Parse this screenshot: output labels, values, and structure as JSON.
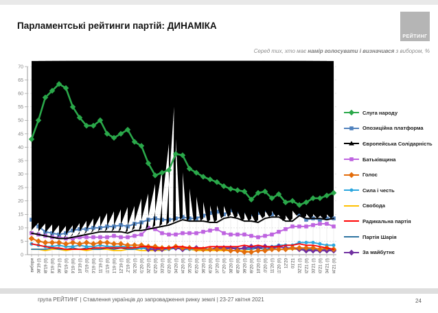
{
  "page": {
    "title": "Парламентські рейтинги партій: ДИНАМІКА",
    "logo_text": "РЕЙТИНГ",
    "subtitle": {
      "part1": "Серед тих, хто має ",
      "part2_bold": "намір голосувати і визначився",
      "part3": " з вибором, %"
    },
    "footer": {
      "text": "група РЕЙТИНГ  | Ставлення українців до запровадження ринку землі  | 23-27 квітня 2021",
      "page_number": "24"
    }
  },
  "chart_data": {
    "type": "line",
    "title": "",
    "xlabel": "",
    "ylabel": "",
    "ylim": [
      0,
      70
    ],
    "ytick_step": 5,
    "grid": true,
    "legend_position": "right",
    "categories": [
      "вибори",
      "08'19 (I)",
      "08'19 (II)",
      "08'19 (III)",
      "09'19 (I)",
      "09'19 (II)",
      "09'19 (III)",
      "10'19 (I)",
      "10'19 (II)",
      "10'19 (III)",
      "11'19 (I)",
      "11'19 (II)",
      "11'19 (III)",
      "12'19 (I)",
      "12'19 (II)",
      "01'20 (I)",
      "01'20 (II)",
      "02'20 (I)",
      "02'20 (II)",
      "03'20 (I)",
      "03'20 (II)",
      "04'20 (I)",
      "04'20 (II)",
      "05'20 (I)",
      "05'20 (II)",
      "06'20 (I)",
      "06'20 (II)",
      "07'20 (I)",
      "07'20 (II)",
      "08'20 (I)",
      "08'20 (II)",
      "09'20 (I)",
      "09'20 (II)",
      "10'20 (I)",
      "10'20 (II)",
      "11'20 (I)",
      "11'20 (II)",
      "12'20",
      "01'21",
      "02'21 (I)",
      "02'21 (II)",
      "03'21 (I)",
      "03'21 (II)",
      "04'21 (I)",
      "04'21 (II)"
    ],
    "series": [
      {
        "name": "Слуга народу",
        "color": "#2AA84A",
        "marker": "diamond",
        "width": 2.6,
        "values": [
          43,
          50,
          58.5,
          61,
          63.5,
          62,
          55,
          51,
          48,
          48,
          50,
          45,
          43.5,
          45,
          46.5,
          42,
          40.5,
          34,
          29.5,
          30.5,
          31.5,
          37.5,
          37,
          32,
          30.5,
          29,
          28,
          27,
          25.5,
          24.5,
          24,
          23.5,
          20.5,
          23,
          23.5,
          21,
          22.5,
          19.5,
          20,
          18.5,
          19.5,
          21,
          21,
          22,
          23
        ]
      },
      {
        "name": "Опозиційна платформа",
        "color": "#4F81BD",
        "marker": "square",
        "width": 2,
        "values": [
          13,
          10.5,
          8.5,
          8,
          7.5,
          8,
          9,
          9.5,
          9.5,
          10,
          10,
          10.5,
          10.5,
          11,
          10.5,
          11.5,
          12,
          13,
          13.5,
          13,
          13,
          13.5,
          14,
          13.5,
          13.5,
          14.5,
          15.5,
          16,
          15,
          16.5,
          16,
          16,
          15,
          15.5,
          16.5,
          15,
          15.5,
          16.5,
          17.5,
          15,
          13,
          13.5,
          13,
          13.5,
          13.5
        ]
      },
      {
        "name": "Європейська Солідарність",
        "color": "#000000",
        "marker": "triangle",
        "width": 2,
        "values": [
          8,
          7.5,
          7,
          6.5,
          6,
          6,
          6.5,
          7,
          7.5,
          8,
          8.5,
          8.5,
          8.5,
          8.5,
          8,
          9,
          9,
          9.5,
          10,
          10.5,
          11,
          12,
          13,
          12.5,
          12.5,
          12.5,
          12,
          12,
          13.5,
          14,
          13.5,
          12.5,
          12.5,
          12,
          13.5,
          14,
          14,
          12.5,
          12.5,
          14.5,
          13.5,
          13.5,
          13.5,
          13,
          13.5
        ]
      },
      {
        "name": "Батьківщина",
        "color": "#BE63E0",
        "marker": "square",
        "width": 2,
        "values": [
          8,
          7.5,
          7,
          6.5,
          6.5,
          6,
          6,
          6.5,
          6.5,
          6.5,
          6.5,
          6.5,
          7,
          6.5,
          6.5,
          7,
          7.5,
          10,
          9.5,
          8,
          7.5,
          7.5,
          8,
          8,
          8,
          8.5,
          9,
          9.5,
          8,
          7.5,
          7.5,
          7.5,
          7,
          6.5,
          7,
          7.5,
          8.5,
          9.5,
          10.5,
          10.5,
          10.5,
          11,
          11.5,
          11.5,
          10.5
        ]
      },
      {
        "name": "Голос",
        "color": "#E36C0A",
        "marker": "diamond",
        "width": 2,
        "values": [
          6,
          5,
          4.5,
          4.5,
          4.5,
          4,
          4.5,
          4,
          4.5,
          4,
          4.5,
          4.5,
          4,
          4,
          3.5,
          3.5,
          3.5,
          3,
          3,
          2.5,
          2.5,
          3,
          2.5,
          2.5,
          2,
          2,
          2,
          2,
          2,
          1.5,
          1.5,
          1,
          1,
          1.5,
          1.5,
          2,
          2,
          2,
          2.5,
          2.5,
          2.5,
          2.5,
          2,
          2.5,
          2
        ]
      },
      {
        "name": "Сила і честь",
        "color": "#2BA6DE",
        "marker": "circle",
        "width": 2,
        "values": [
          4,
          3.5,
          3,
          3,
          3.5,
          3,
          3,
          3.5,
          3,
          3,
          3.5,
          3,
          3,
          3,
          3,
          2.5,
          2.5,
          2,
          2,
          2,
          2,
          2.5,
          2,
          2,
          2,
          2,
          2,
          2.5,
          2.5,
          2.5,
          2,
          2.5,
          2.5,
          3,
          3,
          3,
          3.5,
          3.5,
          3.5,
          4.5,
          4.5,
          4.5,
          4,
          3.5,
          3.5
        ]
      },
      {
        "name": "Свобода",
        "color": "#FFC000",
        "marker": "none",
        "width": 1.8,
        "values": [
          2,
          2,
          1.5,
          2,
          2,
          1.5,
          2,
          2,
          1.5,
          2,
          2,
          2,
          1.5,
          1.5,
          2,
          2,
          1.5,
          1.5,
          1.5,
          1.5,
          2,
          2.5,
          2,
          2,
          1.5,
          1.5,
          1.5,
          1.5,
          1.5,
          1.5,
          1.5,
          1.5,
          1,
          1.5,
          1.5,
          2,
          2,
          2,
          2,
          2,
          2,
          2,
          2,
          2,
          2
        ]
      },
      {
        "name": "Радикальна партія",
        "color": "#FF0000",
        "marker": "none",
        "width": 1.8,
        "values": [
          4,
          3.5,
          3,
          2.5,
          2.5,
          2,
          2,
          2,
          2,
          2.5,
          2.5,
          2.5,
          2.5,
          2.5,
          2.5,
          2.5,
          3,
          3,
          2.5,
          2.5,
          2.5,
          3,
          3,
          2.5,
          2.5,
          2.5,
          3,
          3,
          3,
          3,
          3,
          3.5,
          3,
          3.5,
          3,
          3,
          3,
          3.5,
          3.5,
          4,
          3.5,
          3.5,
          3,
          2.5,
          2
        ]
      },
      {
        "name": "Партія Шарія",
        "color": "#2E74A0",
        "marker": "none",
        "width": 1.8,
        "values": [
          2,
          2,
          2,
          2.5,
          2,
          2,
          2.5,
          2,
          2.5,
          2,
          2,
          2.5,
          2,
          2.5,
          2,
          2,
          2.5,
          2.5,
          2,
          2.5,
          2.5,
          2.5,
          2.5,
          2,
          2.5,
          2.5,
          2,
          2.5,
          2,
          2.5,
          2.5,
          2,
          2,
          2.5,
          2,
          2.5,
          2,
          2,
          2.5,
          2,
          2,
          2,
          2,
          2,
          2
        ]
      },
      {
        "name": "За майбутнє",
        "color": "#7030A0",
        "marker": "diamond",
        "width": 2,
        "values": [
          null,
          null,
          null,
          null,
          null,
          null,
          null,
          null,
          null,
          null,
          null,
          null,
          null,
          null,
          null,
          null,
          null,
          2,
          2,
          2,
          2.5,
          2.5,
          2,
          2.5,
          2.5,
          2,
          2,
          2.5,
          2.5,
          2.5,
          2,
          2.5,
          3,
          2.5,
          3,
          2.5,
          3,
          2.5,
          2.5,
          2,
          1.5,
          1.5,
          1.5,
          1.5,
          1.5
        ]
      }
    ]
  }
}
